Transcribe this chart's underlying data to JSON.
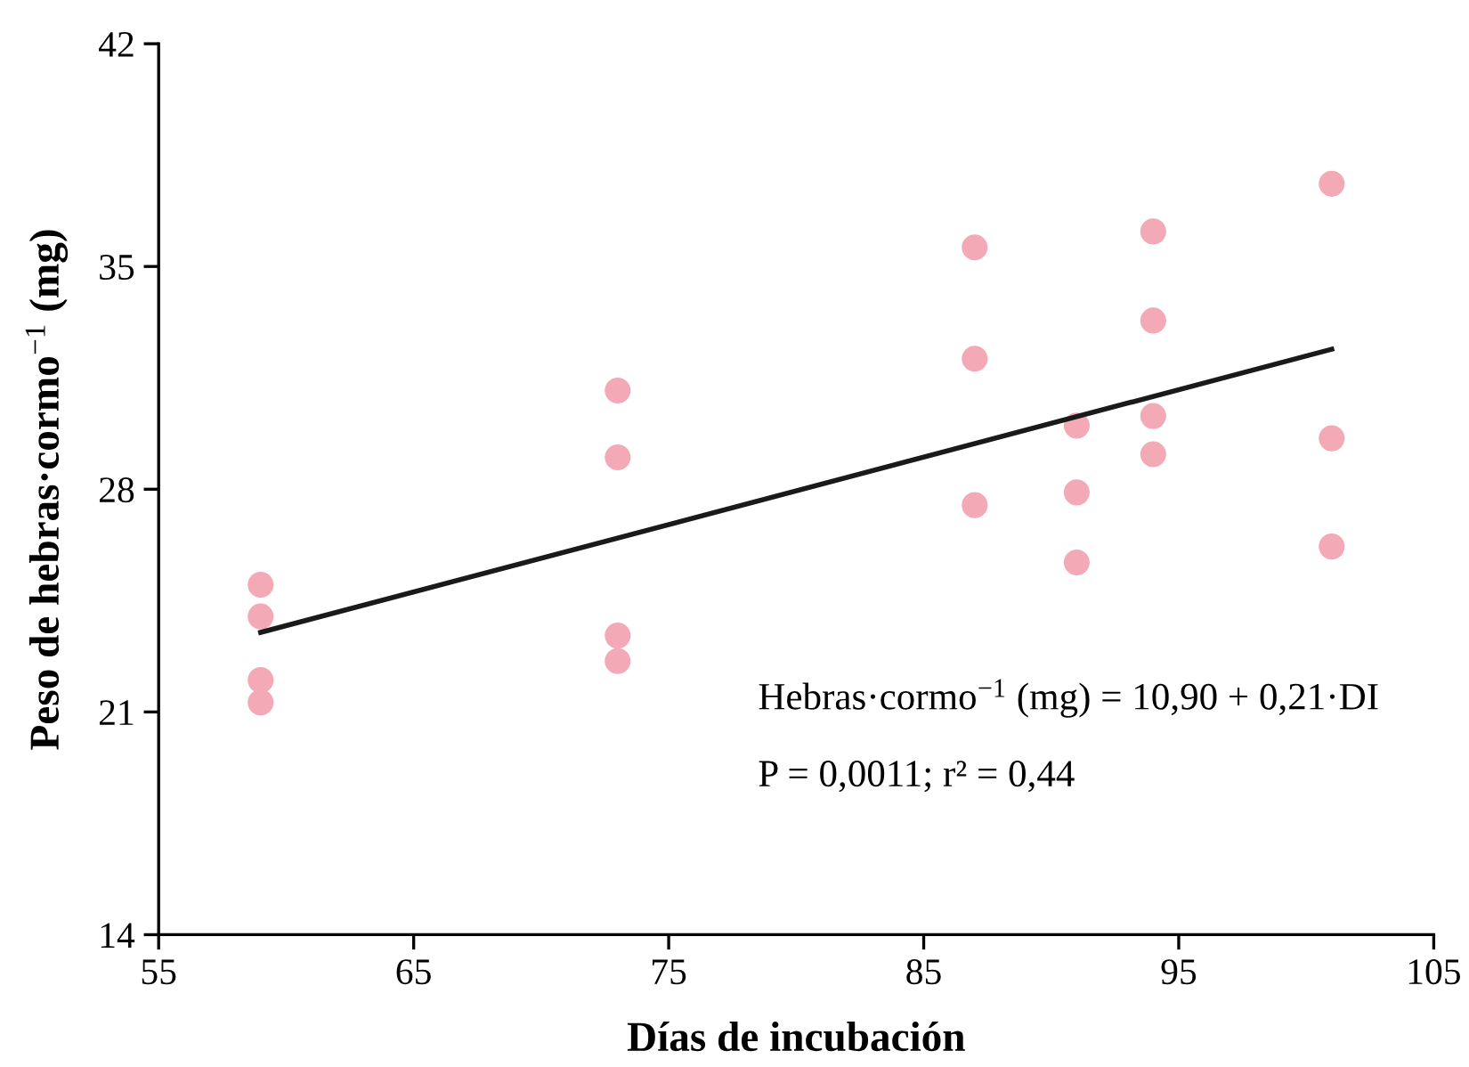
{
  "chart_data": {
    "type": "scatter",
    "xlabel": "Días de incubación",
    "ylabel": "Peso de hebras·cormo$^{−1}$ (mg)",
    "xlim": [
      55,
      105
    ],
    "xticks": [
      55,
      65,
      75,
      85,
      95,
      105
    ],
    "ylim": [
      14,
      42
    ],
    "yticks": [
      14,
      21,
      28,
      35,
      42
    ],
    "marker": "circle",
    "series": [
      {
        "color": "#f4a9b6",
        "x": [
          59,
          59,
          59,
          59,
          73,
          73,
          73,
          73,
          87,
          87,
          87,
          91,
          91,
          91,
          94,
          94,
          94,
          94,
          101,
          101,
          101
        ],
        "values": [
          25.0,
          24.0,
          22.0,
          21.3,
          31.1,
          29.0,
          23.4,
          22.6,
          35.6,
          32.1,
          27.5,
          30.0,
          27.9,
          25.7,
          36.1,
          33.3,
          30.3,
          29.1,
          37.6,
          29.6,
          26.2
        ]
      },
      {
        "type": "line",
        "color": "#1a1a1a",
        "marker": "none",
        "line_style": "solid",
        "x": [
          59,
          101
        ],
        "values": [
          23.5,
          32.4
        ]
      }
    ],
    "annotations": [
      "Hebras·cormo$^{−1}$ (mg) = 10,90 + 0,21·DI",
      "P = 0,0011; r² = 0,44"
    ]
  }
}
